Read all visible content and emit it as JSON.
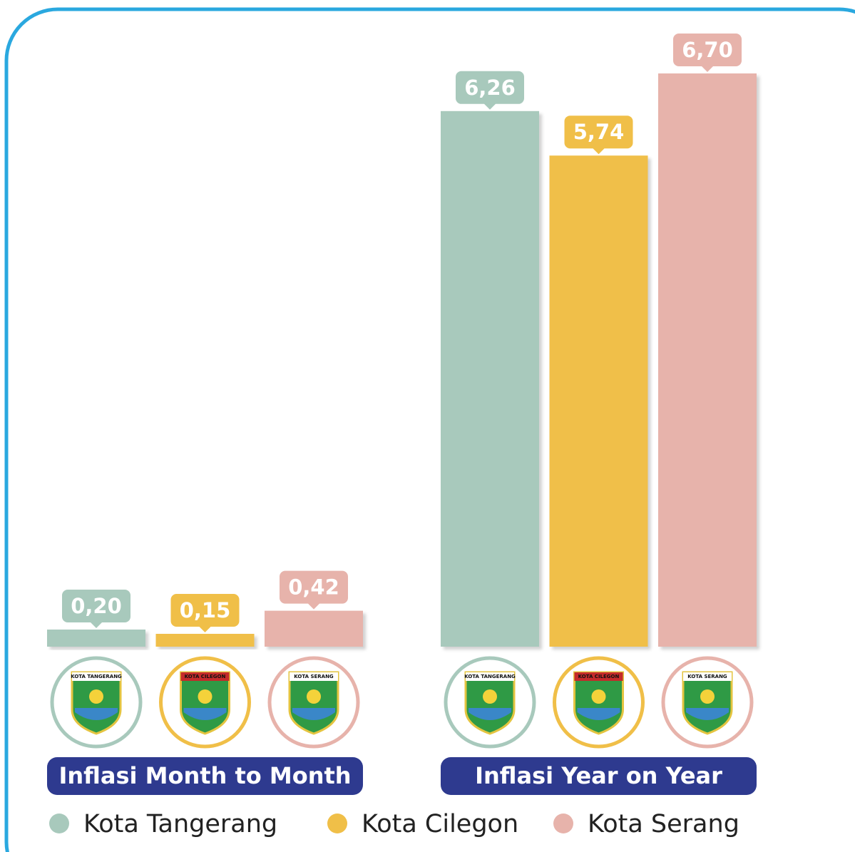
{
  "chart_data": {
    "type": "bar",
    "categories": [
      "Inflasi Month to Month",
      "Inflasi Year on Year"
    ],
    "series": [
      {
        "name": "Kota Tangerang",
        "color": "#a8c9bc",
        "values": [
          0.2,
          6.26
        ],
        "value_labels": [
          "0,20",
          "6,26"
        ]
      },
      {
        "name": "Kota Cilegon",
        "color": "#f0bf48",
        "values": [
          0.15,
          5.74
        ],
        "value_labels": [
          "0,15",
          "5,74"
        ]
      },
      {
        "name": "Kota Serang",
        "color": "#e7b3ab",
        "values": [
          0.42,
          6.7
        ],
        "value_labels": [
          "0,42",
          "6,70"
        ]
      }
    ]
  }
}
